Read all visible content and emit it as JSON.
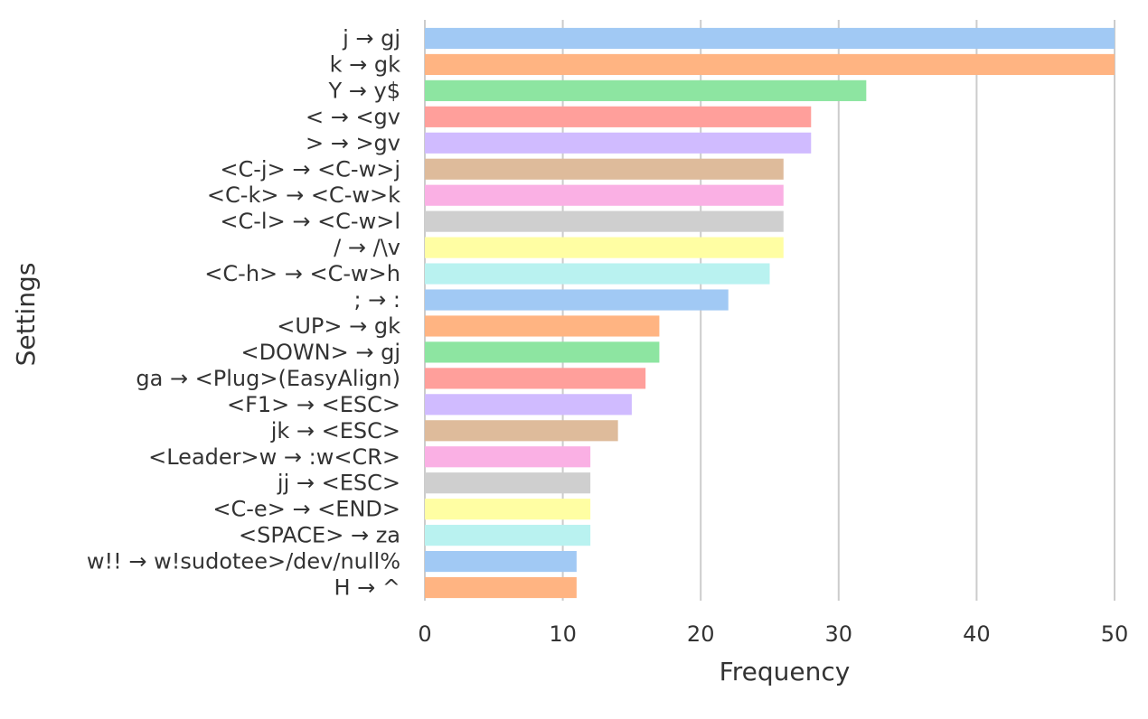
{
  "chart_data": {
    "type": "bar",
    "orientation": "horizontal",
    "xlabel": "Frequency",
    "ylabel": "Settings",
    "xlim": [
      0,
      50
    ],
    "xticks": [
      0,
      10,
      20,
      30,
      40,
      50
    ],
    "grid": "vertical",
    "categories": [
      "j → gj",
      "k → gk",
      "Y → y$",
      "< → <gv",
      "> → >gv",
      "<C-j> → <C-w>j",
      "<C-k> → <C-w>k",
      "<C-l> → <C-w>l",
      "/ → /\\v",
      "<C-h> → <C-w>h",
      "; → :",
      "<UP> → gk",
      "<DOWN> → gj",
      "ga → <Plug>(EasyAlign)",
      "<F1> → <ESC>",
      "jk → <ESC>",
      "<Leader>w → :w<CR>",
      "jj → <ESC>",
      "<C-e> → <END>",
      "<SPACE> → za",
      "w!! → w!sudotee>/dev/null%",
      "H → ^"
    ],
    "values": [
      50,
      50,
      32,
      28,
      28,
      26,
      26,
      26,
      26,
      25,
      22,
      17,
      17,
      16,
      15,
      14,
      12,
      12,
      12,
      12,
      11,
      11
    ],
    "palette": [
      "#a1c9f4",
      "#ffb482",
      "#8de5a1",
      "#ff9f9b",
      "#d0bbff",
      "#debb9b",
      "#fab0e4",
      "#cfcfcf",
      "#fffea3",
      "#b9f2f0"
    ]
  }
}
